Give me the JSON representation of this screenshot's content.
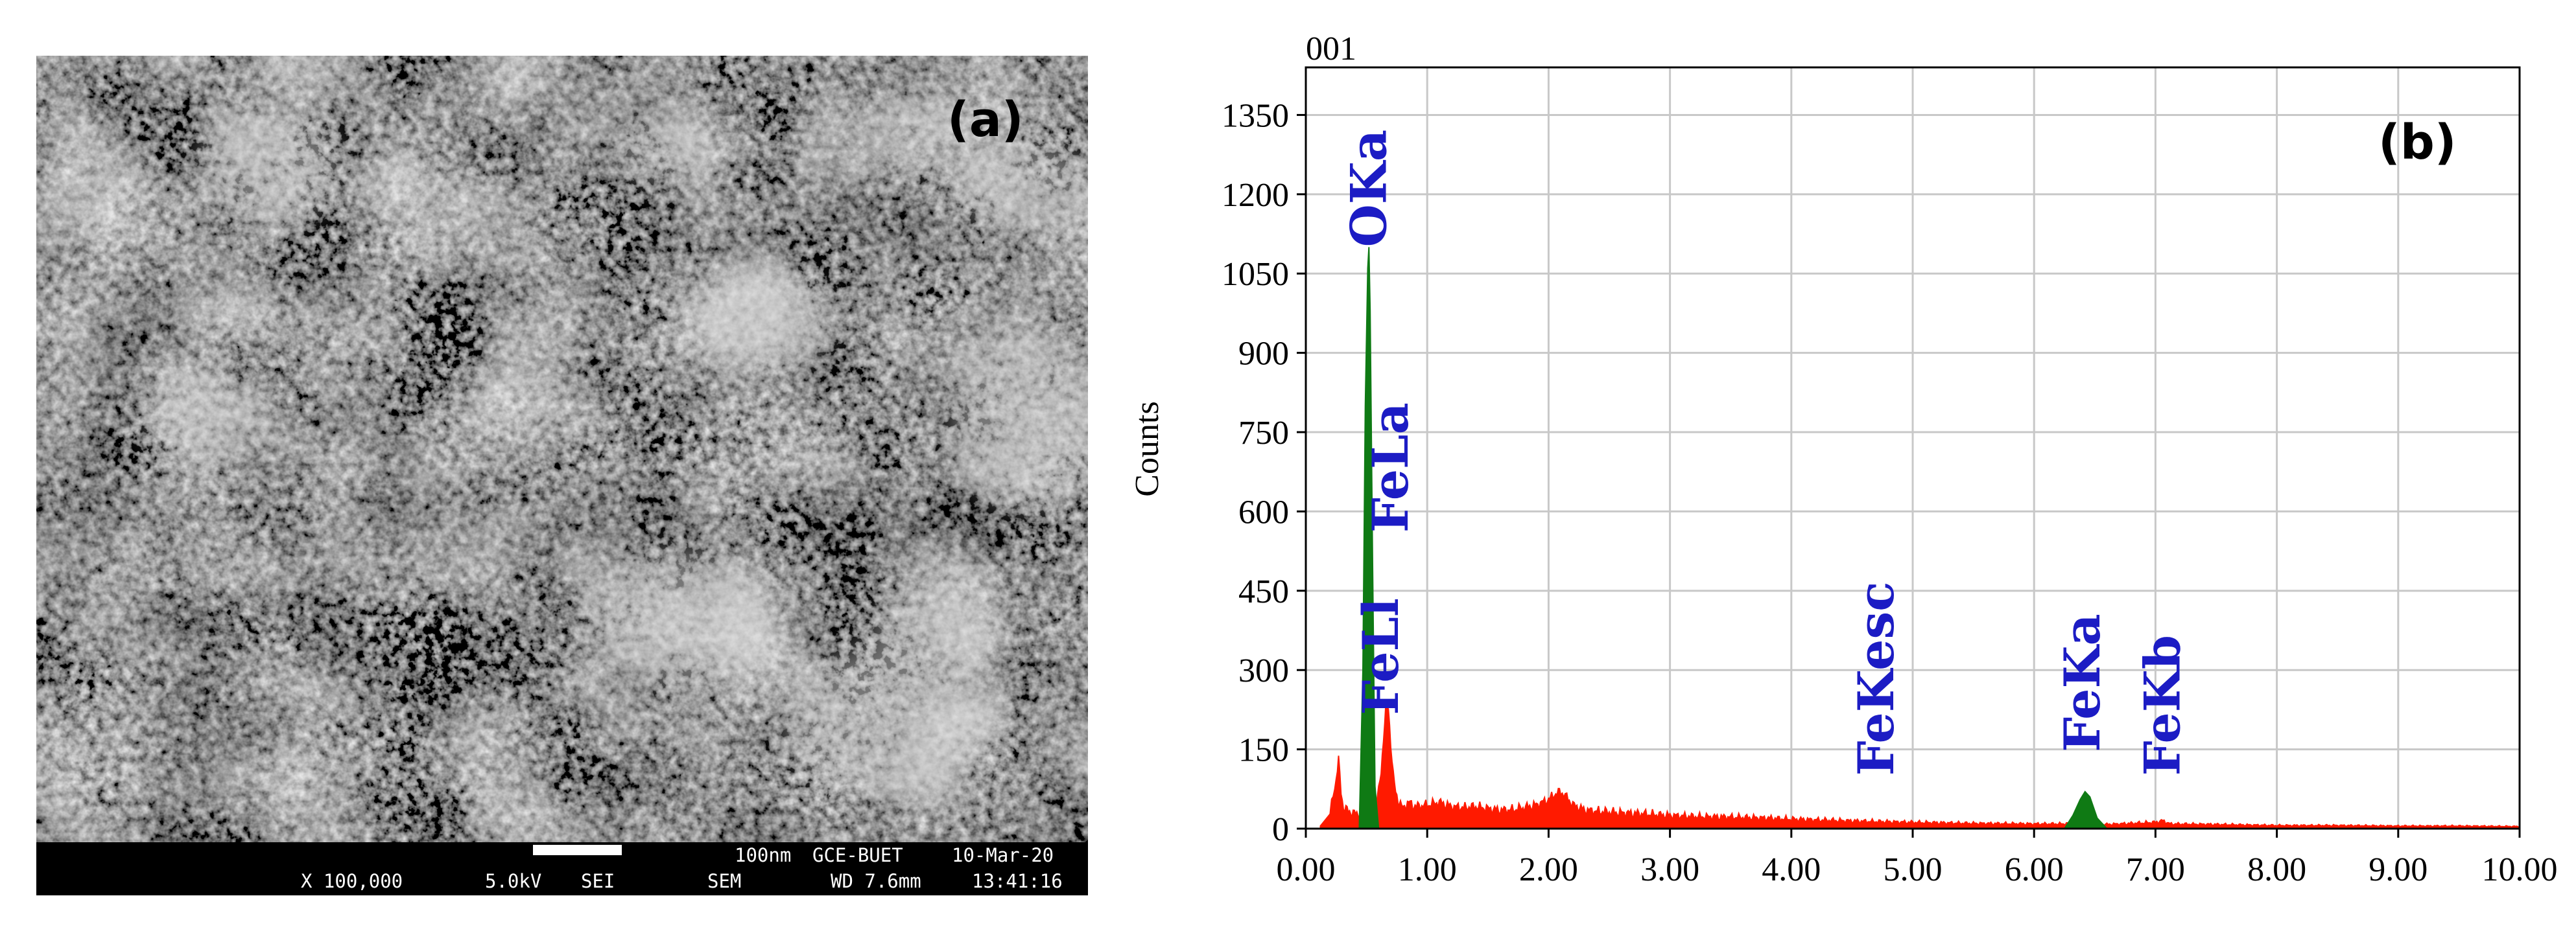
{
  "panel_a": {
    "label": "(a)",
    "databar": {
      "scale": "100nm",
      "institution": "GCE-BUET",
      "date": "10-Mar-20",
      "magnification": "X 100,000",
      "voltage": "5.0kV",
      "detector": "SEI",
      "mode": "SEM",
      "working_distance": "WD 7.6mm",
      "time": "13:41:16"
    }
  },
  "chart_data": {
    "type": "area",
    "panel_label": "(b)",
    "spectrum_id": "001",
    "ylabel": "Counts",
    "xlabel": "",
    "xlim": [
      0,
      10
    ],
    "ylim": [
      0,
      1440
    ],
    "grid": true,
    "x_ticks": [
      "0.00",
      "1.00",
      "2.00",
      "3.00",
      "4.00",
      "5.00",
      "6.00",
      "7.00",
      "8.00",
      "9.00",
      "10.00"
    ],
    "y_ticks": [
      "0",
      "150",
      "300",
      "450",
      "600",
      "750",
      "900",
      "1050",
      "1200",
      "1350"
    ],
    "colors": {
      "background": "#ff1a00",
      "element_peaks": "#0f7a14",
      "labels": "#1c1cc4",
      "grid": "#c8c8c8"
    },
    "series": [
      {
        "color": "#ff1a00",
        "x": [
          0.12,
          0.2,
          0.25,
          0.27,
          0.29,
          0.31,
          0.34,
          0.38,
          0.42,
          0.45,
          0.49,
          0.52,
          0.55,
          0.58,
          0.6,
          0.62,
          0.64,
          0.66,
          0.68,
          0.7,
          0.72,
          0.74,
          0.76,
          0.78,
          0.8,
          0.85,
          0.9,
          1.0,
          1.1,
          1.2,
          1.3,
          1.4,
          1.5,
          1.6,
          1.7,
          1.8,
          1.9,
          2.0,
          2.05,
          2.1,
          2.15,
          2.2,
          2.3,
          2.4,
          2.6,
          2.8,
          3.0,
          3.2,
          3.5,
          3.8,
          4.0,
          4.3,
          4.6,
          5.0,
          5.5,
          6.0,
          6.2,
          6.4,
          6.6,
          7.0,
          7.06,
          7.12,
          7.5,
          8.0,
          8.5,
          9.0,
          9.5,
          10.0
        ],
        "y": [
          5,
          30,
          95,
          130,
          70,
          40,
          35,
          30,
          28,
          30,
          32,
          35,
          40,
          50,
          70,
          110,
          170,
          230,
          230,
          160,
          100,
          70,
          55,
          45,
          40,
          50,
          42,
          45,
          50,
          42,
          40,
          42,
          38,
          35,
          36,
          40,
          45,
          55,
          65,
          70,
          60,
          45,
          35,
          33,
          30,
          28,
          25,
          23,
          22,
          20,
          18,
          16,
          14,
          12,
          10,
          9,
          9,
          10,
          8,
          12,
          15,
          9,
          8,
          6,
          6,
          5,
          5,
          4
        ]
      },
      {
        "color": "#0f7a14",
        "x": [
          0.44,
          0.47,
          0.49,
          0.51,
          0.52,
          0.53,
          0.55,
          0.57,
          0.6
        ],
        "y": [
          0,
          300,
          800,
          1060,
          1100,
          980,
          500,
          80,
          0
        ]
      },
      {
        "color": "#0f7a14",
        "x": [
          6.25,
          6.32,
          6.38,
          6.42,
          6.46,
          6.52,
          6.6
        ],
        "y": [
          0,
          25,
          55,
          70,
          60,
          20,
          0
        ]
      }
    ],
    "annotations": [
      {
        "text": "OKa",
        "x": 0.52,
        "y": 1100
      },
      {
        "text": "FeLa",
        "x": 0.7,
        "y": 560
      },
      {
        "text": "FeLl",
        "x": 0.62,
        "y": 215
      },
      {
        "text": "FeKesc",
        "x": 4.7,
        "y": 100
      },
      {
        "text": "FeKa",
        "x": 6.4,
        "y": 145
      },
      {
        "text": "FeKb",
        "x": 7.06,
        "y": 100
      }
    ]
  }
}
